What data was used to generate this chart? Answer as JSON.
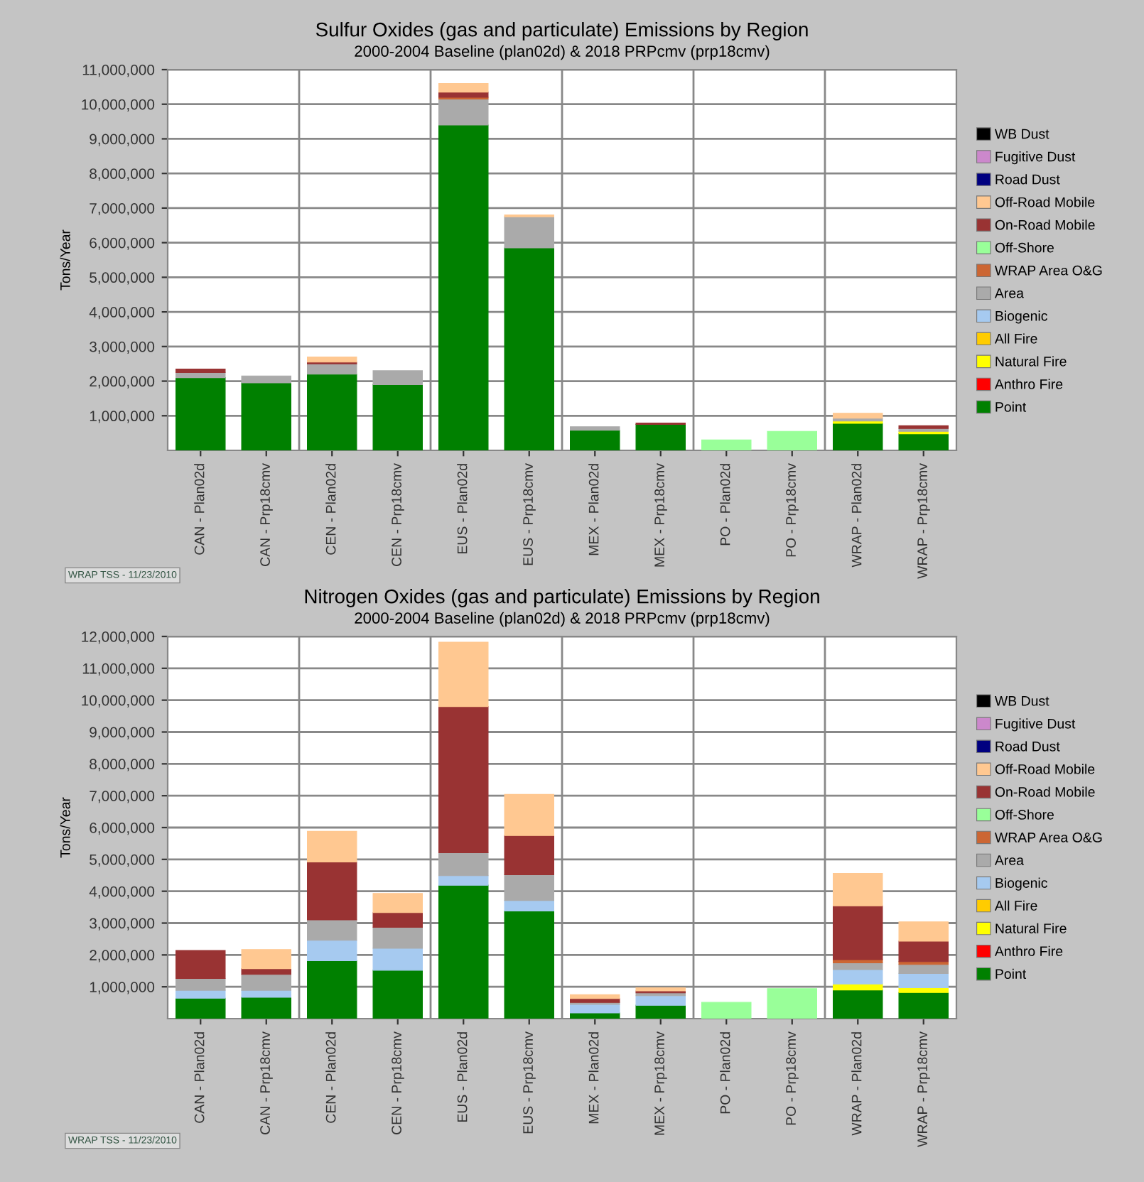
{
  "chart_data": [
    {
      "type": "bar",
      "stacked": true,
      "title": "Sulfur Oxides (gas and particulate) Emissions by Region",
      "subtitle": "2000-2004 Baseline (plan02d) & 2018 PRPcmv (prp18cmv)",
      "ylabel": "Tons/Year",
      "categories": [
        "CAN - Plan02d",
        "CAN - Prp18cmv",
        "CEN - Plan02d",
        "CEN - Prp18cmv",
        "EUS - Plan02d",
        "EUS - Prp18cmv",
        "MEX - Plan02d",
        "MEX - Prp18cmv",
        "PO - Plan02d",
        "PO - Prp18cmv",
        "WRAP - Plan02d",
        "WRAP - Prp18cmv"
      ],
      "ylim": [
        0,
        11000000
      ],
      "yticks": [
        {
          "value": 1000000,
          "label": "1,000,000"
        },
        {
          "value": 2000000,
          "label": "2,000,000"
        },
        {
          "value": 3000000,
          "label": "3,000,000"
        },
        {
          "value": 4000000,
          "label": "4,000,000"
        },
        {
          "value": 5000000,
          "label": "5,000,000"
        },
        {
          "value": 6000000,
          "label": "6,000,000"
        },
        {
          "value": 7000000,
          "label": "7,000,000"
        },
        {
          "value": 8000000,
          "label": "8,000,000"
        },
        {
          "value": 9000000,
          "label": "9,000,000"
        },
        {
          "value": 10000000,
          "label": "10,000,000"
        },
        {
          "value": 11000000,
          "label": "11,000,000"
        }
      ],
      "grid": true,
      "legend": "right",
      "annotations": [
        "WRAP TSS - 11/23/2010"
      ],
      "series": [
        {
          "name": "Point",
          "color": "#008000",
          "values": [
            2100000,
            1950000,
            2200000,
            1900000,
            9400000,
            5850000,
            580000,
            750000,
            0,
            0,
            780000,
            480000
          ]
        },
        {
          "name": "Anthro Fire",
          "color": "#ff0000",
          "values": [
            0,
            0,
            0,
            0,
            0,
            0,
            0,
            0,
            0,
            0,
            0,
            0
          ]
        },
        {
          "name": "Natural Fire",
          "color": "#ffff00",
          "values": [
            0,
            0,
            0,
            0,
            0,
            0,
            0,
            0,
            0,
            0,
            70000,
            70000
          ]
        },
        {
          "name": "All Fire",
          "color": "#ffcc00",
          "values": [
            0,
            0,
            0,
            0,
            0,
            0,
            0,
            0,
            0,
            0,
            0,
            0
          ]
        },
        {
          "name": "Biogenic",
          "color": "#a6caf0",
          "values": [
            0,
            0,
            0,
            0,
            0,
            0,
            0,
            0,
            0,
            0,
            0,
            0
          ]
        },
        {
          "name": "Area",
          "color": "#aaaaaa",
          "values": [
            150000,
            200000,
            300000,
            400000,
            750000,
            900000,
            100000,
            0,
            0,
            0,
            80000,
            80000
          ]
        },
        {
          "name": "WRAP Area O&G",
          "color": "#cc6633",
          "values": [
            0,
            0,
            0,
            0,
            50000,
            0,
            0,
            0,
            0,
            0,
            0,
            0
          ]
        },
        {
          "name": "Off-Shore",
          "color": "#99ff99",
          "values": [
            0,
            0,
            0,
            0,
            0,
            0,
            0,
            0,
            300000,
            550000,
            0,
            0
          ]
        },
        {
          "name": "On-Road Mobile",
          "color": "#993333",
          "values": [
            100000,
            0,
            50000,
            0,
            150000,
            0,
            0,
            40000,
            0,
            0,
            0,
            80000
          ]
        },
        {
          "name": "Off-Road Mobile",
          "color": "#ffc891",
          "values": [
            0,
            0,
            150000,
            0,
            250000,
            50000,
            0,
            0,
            0,
            0,
            140000,
            0
          ]
        },
        {
          "name": "Road Dust",
          "color": "#000080",
          "values": [
            0,
            0,
            0,
            0,
            0,
            0,
            0,
            0,
            0,
            0,
            0,
            0
          ]
        },
        {
          "name": "Fugitive Dust",
          "color": "#cc88cc",
          "values": [
            0,
            0,
            0,
            0,
            0,
            0,
            0,
            0,
            0,
            0,
            0,
            0
          ]
        },
        {
          "name": "WB Dust",
          "color": "#000000",
          "values": [
            0,
            0,
            0,
            0,
            0,
            0,
            0,
            0,
            0,
            0,
            0,
            0
          ]
        }
      ]
    },
    {
      "type": "bar",
      "stacked": true,
      "title": "Nitrogen Oxides (gas and particulate) Emissions by Region",
      "subtitle": "2000-2004 Baseline (plan02d) & 2018 PRPcmv (prp18cmv)",
      "ylabel": "Tons/Year",
      "categories": [
        "CAN - Plan02d",
        "CAN - Prp18cmv",
        "CEN - Plan02d",
        "CEN - Prp18cmv",
        "EUS - Plan02d",
        "EUS - Prp18cmv",
        "MEX - Plan02d",
        "MEX - Prp18cmv",
        "PO - Plan02d",
        "PO - Prp18cmv",
        "WRAP - Plan02d",
        "WRAP - Prp18cmv"
      ],
      "ylim": [
        0,
        12000000
      ],
      "yticks": [
        {
          "value": 1000000,
          "label": "1,000,000"
        },
        {
          "value": 2000000,
          "label": "2,000,000"
        },
        {
          "value": 3000000,
          "label": "3,000,000"
        },
        {
          "value": 4000000,
          "label": "4,000,000"
        },
        {
          "value": 5000000,
          "label": "5,000,000"
        },
        {
          "value": 6000000,
          "label": "6,000,000"
        },
        {
          "value": 7000000,
          "label": "7,000,000"
        },
        {
          "value": 8000000,
          "label": "8,000,000"
        },
        {
          "value": 9000000,
          "label": "9,000,000"
        },
        {
          "value": 10000000,
          "label": "10,000,000"
        },
        {
          "value": 11000000,
          "label": "11,000,000"
        },
        {
          "value": 12000000,
          "label": "12,000,000"
        }
      ],
      "grid": true,
      "legend": "right",
      "annotations": [
        "WRAP TSS - 11/23/2010"
      ],
      "series": [
        {
          "name": "Point",
          "color": "#008000",
          "values": [
            640000,
            670000,
            1820000,
            1520000,
            4190000,
            3380000,
            180000,
            420000,
            0,
            0,
            900000,
            820000
          ]
        },
        {
          "name": "Anthro Fire",
          "color": "#ff0000",
          "values": [
            0,
            0,
            0,
            0,
            0,
            0,
            0,
            0,
            0,
            0,
            0,
            0
          ]
        },
        {
          "name": "Natural Fire",
          "color": "#ffff00",
          "values": [
            0,
            0,
            0,
            0,
            0,
            0,
            0,
            0,
            0,
            0,
            190000,
            150000
          ]
        },
        {
          "name": "All Fire",
          "color": "#ffcc00",
          "values": [
            0,
            0,
            0,
            0,
            0,
            0,
            0,
            0,
            0,
            0,
            0,
            0
          ]
        },
        {
          "name": "Biogenic",
          "color": "#a6caf0",
          "values": [
            250000,
            220000,
            640000,
            690000,
            300000,
            330000,
            270000,
            300000,
            0,
            0,
            450000,
            450000
          ]
        },
        {
          "name": "Area",
          "color": "#aaaaaa",
          "values": [
            370000,
            500000,
            640000,
            660000,
            720000,
            810000,
            60000,
            90000,
            0,
            0,
            210000,
            280000
          ]
        },
        {
          "name": "WRAP Area O&G",
          "color": "#cc6633",
          "values": [
            0,
            0,
            0,
            0,
            0,
            0,
            0,
            0,
            0,
            0,
            100000,
            90000
          ]
        },
        {
          "name": "Off-Shore",
          "color": "#99ff99",
          "values": [
            0,
            0,
            0,
            0,
            0,
            0,
            0,
            0,
            510000,
            940000,
            0,
            0
          ]
        },
        {
          "name": "On-Road Mobile",
          "color": "#993333",
          "values": [
            880000,
            180000,
            1820000,
            460000,
            4590000,
            1230000,
            120000,
            60000,
            0,
            0,
            1690000,
            640000
          ]
        },
        {
          "name": "Off-Road Mobile",
          "color": "#ffc891",
          "values": [
            0,
            600000,
            960000,
            600000,
            2020000,
            1290000,
            120000,
            100000,
            0,
            0,
            1020000,
            610000
          ]
        },
        {
          "name": "Road Dust",
          "color": "#000080",
          "values": [
            0,
            0,
            0,
            0,
            0,
            0,
            0,
            0,
            0,
            0,
            0,
            0
          ]
        },
        {
          "name": "Fugitive Dust",
          "color": "#cc88cc",
          "values": [
            0,
            0,
            0,
            0,
            0,
            0,
            0,
            0,
            0,
            0,
            0,
            0
          ]
        },
        {
          "name": "WB Dust",
          "color": "#000000",
          "values": [
            0,
            0,
            0,
            0,
            0,
            0,
            0,
            0,
            0,
            0,
            0,
            0
          ]
        }
      ]
    }
  ]
}
